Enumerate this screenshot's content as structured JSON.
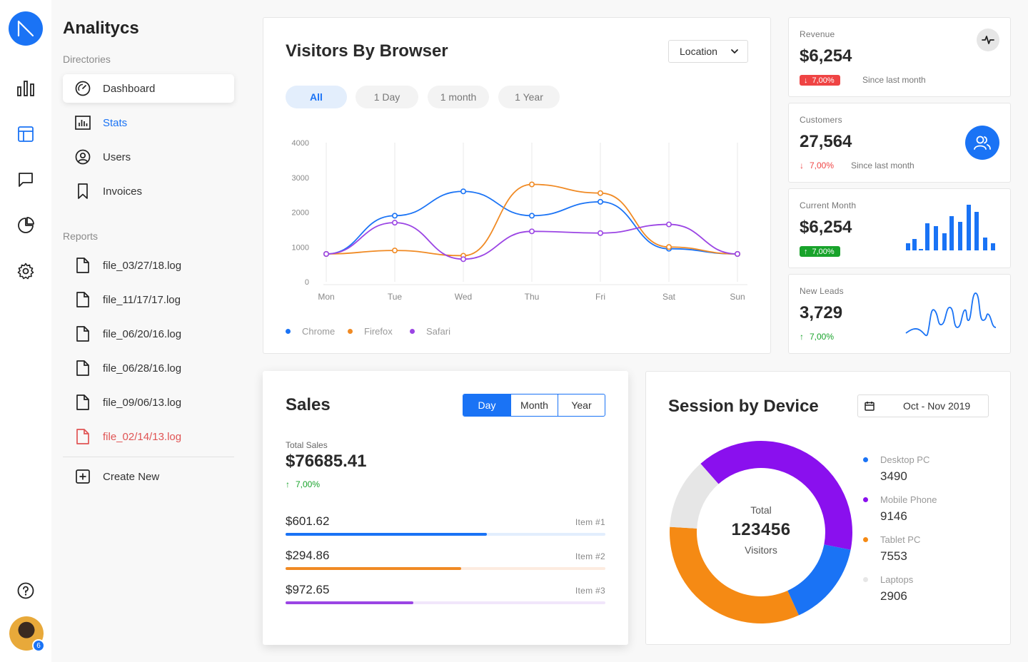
{
  "sidebar": {
    "app_title": "Analitycs",
    "directories_label": "Directories",
    "directories": [
      {
        "label": "Dashboard"
      },
      {
        "label": "Stats"
      },
      {
        "label": "Users"
      },
      {
        "label": "Invoices"
      }
    ],
    "reports_label": "Reports",
    "reports": [
      {
        "label": "file_03/27/18.log"
      },
      {
        "label": "file_11/17/17.log"
      },
      {
        "label": "file_06/20/16.log"
      },
      {
        "label": "file_06/28/16.log"
      },
      {
        "label": "file_09/06/13.log"
      },
      {
        "label": "file_02/14/13.log"
      }
    ],
    "create_new": "Create New"
  },
  "rail": {
    "icons": [
      "bar-chart-icon",
      "layout-icon",
      "chat-icon",
      "pie-chart-icon",
      "gear-icon",
      "help-icon"
    ],
    "avatar_badge": "6"
  },
  "visitors": {
    "title": "Visitors By Browser",
    "location_select": "Location",
    "ranges": [
      "All",
      "1 Day",
      "1 month",
      "1 Year"
    ],
    "active_range": "All"
  },
  "chart_data": {
    "type": "line",
    "title": "Visitors By Browser",
    "categories": [
      "Mon",
      "Tue",
      "Wed",
      "Thu",
      "Fri",
      "Sat",
      "Sun"
    ],
    "ylim": [
      0,
      4000
    ],
    "yticks": [
      0,
      1000,
      2000,
      3000,
      4000
    ],
    "grid": "vertical",
    "legend": "bottom-left",
    "series": [
      {
        "name": "Chrome",
        "color": "#1a73f5",
        "values": [
          800,
          1900,
          2600,
          1900,
          2300,
          950,
          800
        ]
      },
      {
        "name": "Firefox",
        "color": "#f08a24",
        "values": [
          800,
          900,
          750,
          2800,
          2550,
          1000,
          800
        ]
      },
      {
        "name": "Safari",
        "color": "#9b45e4",
        "values": [
          800,
          1700,
          650,
          1450,
          1400,
          1650,
          800
        ]
      }
    ]
  },
  "kpis": {
    "revenue": {
      "label": "Revenue",
      "value": "$6,254",
      "change": "7,00%",
      "note": "Since last month"
    },
    "customers": {
      "label": "Customers",
      "value": "27,564",
      "change": "7,00%",
      "note": "Since last month"
    },
    "current_month": {
      "label": "Current Month",
      "value": "$6,254",
      "change": "7,00%"
    },
    "new_leads": {
      "label": "New Leads",
      "value": "3,729",
      "change": "7,00%"
    }
  },
  "colors": {
    "accent": "#1a73f5",
    "negative": "#ef4444",
    "positive": "#18a32b",
    "orange": "#f08a24",
    "purple": "#9b45e4",
    "grey": "#e6e6e6"
  },
  "sales": {
    "title": "Sales",
    "periods": [
      "Day",
      "Month",
      "Year"
    ],
    "active_period": "Day",
    "total_label": "Total Sales",
    "total_value": "$76685.41",
    "change": "7,00%",
    "items": [
      {
        "amount": "$601.62",
        "label": "Item #1",
        "progress": 0.63,
        "color": "#1a73f5",
        "track": "#e2eefd"
      },
      {
        "amount": "$294.86",
        "label": "Item #2",
        "progress": 0.55,
        "color": "#f08a24",
        "track": "#fdece0"
      },
      {
        "amount": "$972.65",
        "label": "Item #3",
        "progress": 0.4,
        "color": "#9b45e4",
        "track": "#f1e6fb"
      }
    ]
  },
  "session": {
    "title": "Session by Device",
    "date_range": "Oct - Nov 2019",
    "total_label": "Total",
    "total_value": "123456",
    "total_unit": "Visitors",
    "devices": [
      {
        "name": "Desktop PC",
        "value": "3490",
        "color": "#1a73f5"
      },
      {
        "name": "Mobile Phone",
        "value": "9146",
        "color": "#8a10ee"
      },
      {
        "name": "Tablet PC",
        "value": "7553",
        "color": "#f58a14"
      },
      {
        "name": "Laptops",
        "value": "2906",
        "color": "#e6e6e6"
      }
    ]
  }
}
